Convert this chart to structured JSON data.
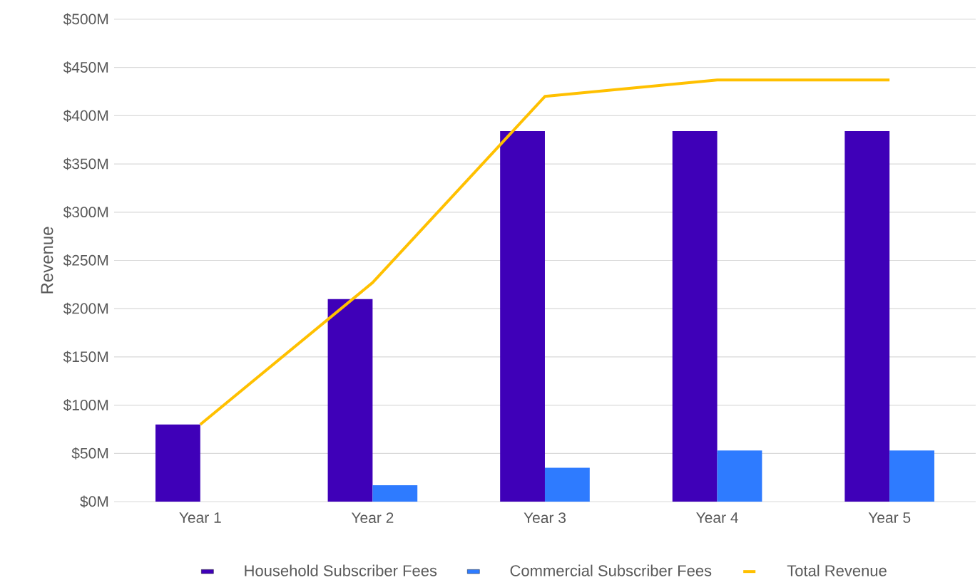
{
  "chart_data": {
    "type": "bar",
    "ylabel": "Revenue",
    "categories": [
      "Year 1",
      "Year 2",
      "Year 3",
      "Year 4",
      "Year 5"
    ],
    "series": [
      {
        "name": "Household Subscriber Fees",
        "color": "#3f00b8",
        "values": [
          80,
          210,
          384,
          384,
          384
        ]
      },
      {
        "name": "Commercial Subscriber Fees",
        "color": "#2e7bff",
        "values": [
          0,
          17,
          35,
          53,
          53
        ]
      },
      {
        "name": "Total Revenue",
        "type": "line",
        "color": "#ffc000",
        "values": [
          80,
          227,
          420,
          437,
          437
        ]
      }
    ],
    "ylim": [
      0,
      500
    ],
    "yticks": [
      {
        "value": 0,
        "label": "$0M"
      },
      {
        "value": 50,
        "label": "$50M"
      },
      {
        "value": 100,
        "label": "$100M"
      },
      {
        "value": 150,
        "label": "$150M"
      },
      {
        "value": 200,
        "label": "$200M"
      },
      {
        "value": 250,
        "label": "$250M"
      },
      {
        "value": 300,
        "label": "$300M"
      },
      {
        "value": 350,
        "label": "$350M"
      },
      {
        "value": 400,
        "label": "$400M"
      },
      {
        "value": 450,
        "label": "$450M"
      },
      {
        "value": 500,
        "label": "$500M"
      }
    ],
    "grid": "y",
    "legend": "bottom"
  }
}
